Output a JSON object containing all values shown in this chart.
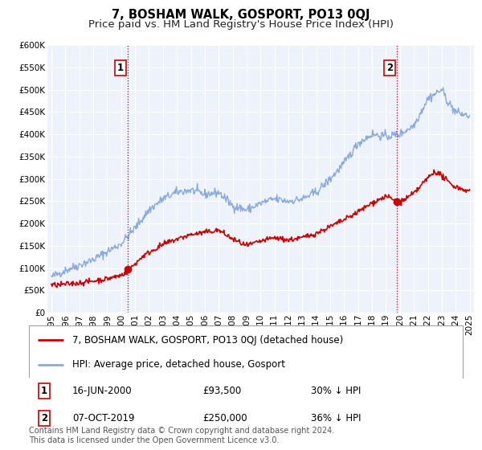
{
  "title": "7, BOSHAM WALK, GOSPORT, PO13 0QJ",
  "subtitle": "Price paid vs. HM Land Registry's House Price Index (HPI)",
  "background_color": "#ffffff",
  "plot_bg_color": "#eef2fa",
  "grid_color": "#ffffff",
  "ylim": [
    0,
    600000
  ],
  "yticks": [
    0,
    50000,
    100000,
    150000,
    200000,
    250000,
    300000,
    350000,
    400000,
    450000,
    500000,
    550000,
    600000
  ],
  "xlim": [
    1994.7,
    2025.3
  ],
  "xticks": [
    1995,
    1996,
    1997,
    1998,
    1999,
    2000,
    2001,
    2002,
    2003,
    2004,
    2005,
    2006,
    2007,
    2008,
    2009,
    2010,
    2011,
    2012,
    2013,
    2014,
    2015,
    2016,
    2017,
    2018,
    2019,
    2020,
    2021,
    2022,
    2023,
    2024,
    2025
  ],
  "sale1_date": 2000.46,
  "sale1_price": 93500,
  "sale2_date": 2019.77,
  "sale2_price": 250000,
  "red_line_color": "#cc0000",
  "blue_line_color": "#88aadd",
  "vline_color": "#cc0000",
  "marker_color": "#cc0000",
  "legend_label_red": "7, BOSHAM WALK, GOSPORT, PO13 0QJ (detached house)",
  "legend_label_blue": "HPI: Average price, detached house, Gosport",
  "annotation1_text": "16-JUN-2000",
  "annotation1_price": "£93,500",
  "annotation1_pct": "30% ↓ HPI",
  "annotation2_text": "07-OCT-2019",
  "annotation2_price": "£250,000",
  "annotation2_pct": "36% ↓ HPI",
  "footer": "Contains HM Land Registry data © Crown copyright and database right 2024.\nThis data is licensed under the Open Government Licence v3.0.",
  "title_fontsize": 10.5,
  "subtitle_fontsize": 9.5,
  "tick_fontsize": 7.5,
  "legend_fontsize": 8.5,
  "annot_fontsize": 8.5,
  "footer_fontsize": 7.0
}
